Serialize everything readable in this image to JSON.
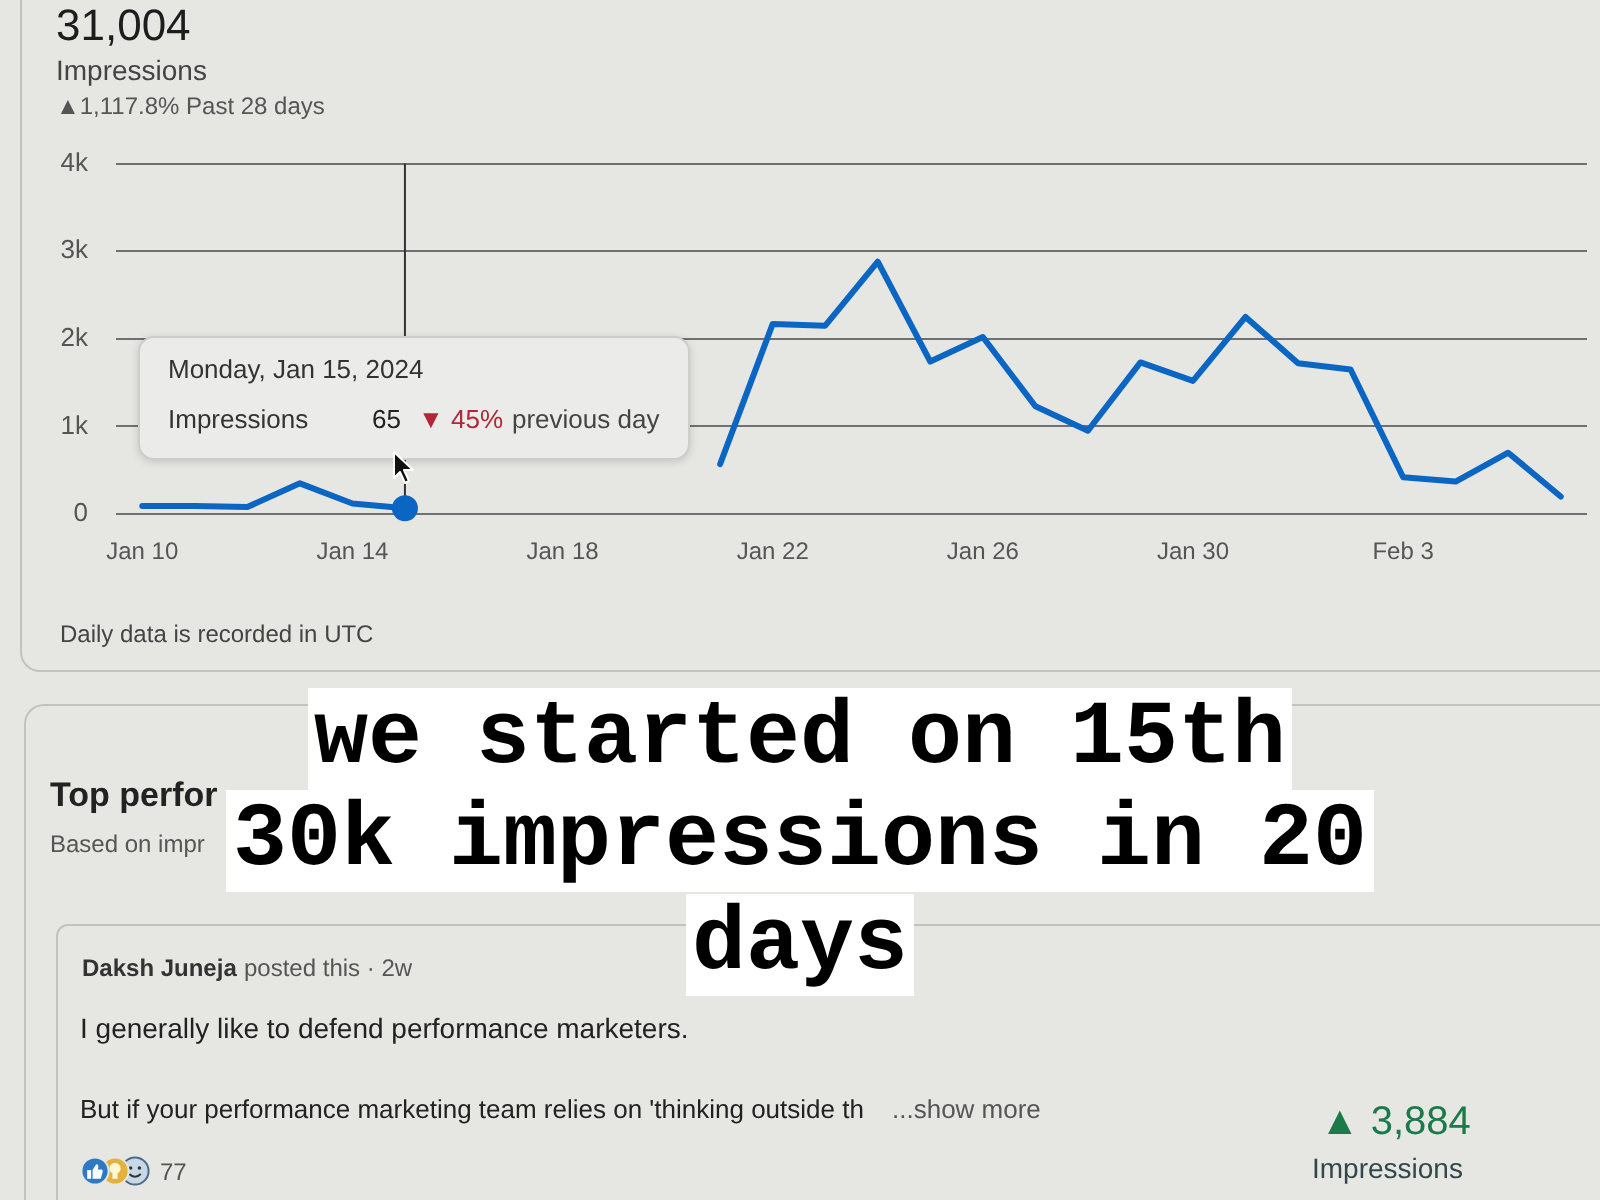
{
  "chart_data": {
    "type": "line",
    "title": "31,004",
    "subtitle": "Impressions",
    "x": [
      "2024-01-10",
      "2024-01-11",
      "2024-01-12",
      "2024-01-13",
      "2024-01-14",
      "2024-01-15",
      "2024-01-16",
      "2024-01-17",
      "2024-01-18",
      "2024-01-19",
      "2024-01-20",
      "2024-01-21",
      "2024-01-22",
      "2024-01-23",
      "2024-01-24",
      "2024-01-25",
      "2024-01-26",
      "2024-01-27",
      "2024-01-28",
      "2024-01-29",
      "2024-01-30",
      "2024-01-31",
      "2024-02-01",
      "2024-02-02",
      "2024-02-03",
      "2024-02-04",
      "2024-02-05",
      "2024-02-06"
    ],
    "series": [
      {
        "type": "line",
        "color": "#0a66c2",
        "values": [
          90,
          90,
          80,
          350,
          120,
          65,
          null,
          null,
          null,
          null,
          null,
          570,
          2170,
          2150,
          2880,
          1740,
          2020,
          1230,
          950,
          1730,
          1520,
          2250,
          1720,
          1650,
          420,
          370,
          700,
          200
        ]
      },
      {
        "type": "scatter",
        "x": [
          "2024-01-15"
        ],
        "color": "#0a66c2",
        "marker": "circle",
        "values": [
          65
        ]
      }
    ],
    "xlim": [
      "2024-01-09T12:00",
      "2024-02-06T12:00"
    ],
    "xticks": [
      {
        "value": "2024-01-10",
        "label": "Jan 10"
      },
      {
        "value": "2024-01-14",
        "label": "Jan 14"
      },
      {
        "value": "2024-01-18",
        "label": "Jan 18"
      },
      {
        "value": "2024-01-22",
        "label": "Jan 22"
      },
      {
        "value": "2024-01-26",
        "label": "Jan 26"
      },
      {
        "value": "2024-01-30",
        "label": "Jan 30"
      },
      {
        "value": "2024-02-03",
        "label": "Feb 3"
      }
    ],
    "ylim": [
      0,
      4000
    ],
    "yticks": [
      {
        "value": 0,
        "label": "0"
      },
      {
        "value": 1000,
        "label": "1k"
      },
      {
        "value": 2000,
        "label": "2k"
      },
      {
        "value": 3000,
        "label": "3k"
      },
      {
        "value": 4000,
        "label": "4k"
      }
    ],
    "grid": "y",
    "legend": false,
    "marker": "none",
    "line_style": "solid",
    "ref_lines": [
      {
        "axis": "x",
        "value": "2024-01-15",
        "color": "#333333"
      }
    ],
    "annotations": [
      "▲1,117.8% Past 28 days",
      "Monday, Jan 15, 2024",
      "Impressions",
      "65",
      "▼ 45%",
      "previous day",
      "Daily data is recorded in UTC",
      "Top perfor",
      "Based on impr",
      "we started on 15th",
      "30k impressions in 20",
      "days",
      "Daksh Juneja",
      "posted this · 2w",
      "I generally like to defend performance marketers.",
      "But if your performance marketing team relies on 'thinking outside th",
      "...show more",
      "77",
      "▲ 3,884",
      "Impressions"
    ]
  }
}
